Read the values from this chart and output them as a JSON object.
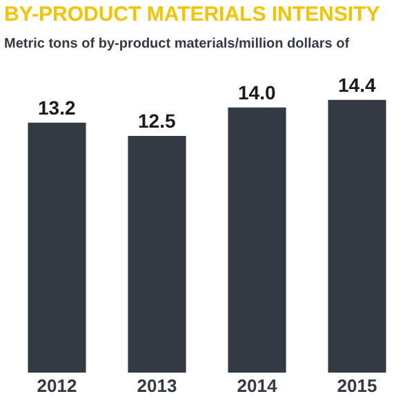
{
  "chart_data": {
    "type": "bar",
    "title": "BY-PRODUCT MATERIALS INTENSITY",
    "subtitle": "Metric tons of by-product materials/million dollars of",
    "categories": [
      "2012",
      "2013",
      "2014",
      "2015"
    ],
    "values": [
      13.2,
      12.5,
      14.0,
      14.4
    ],
    "value_labels": [
      "13.2",
      "12.5",
      "14.0",
      "14.4"
    ],
    "color": "#333a44",
    "tick_labels": "x"
  }
}
